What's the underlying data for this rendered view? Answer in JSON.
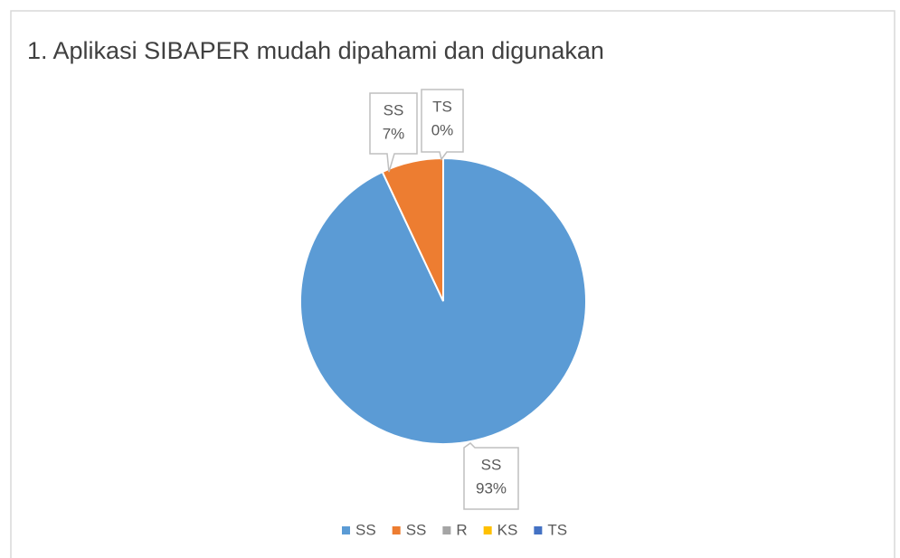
{
  "chart_data": {
    "type": "pie",
    "title": "1. Aplikasi SIBAPER mudah dipahami dan digunakan",
    "categories": [
      "SS",
      "SS",
      "R",
      "KS",
      "TS"
    ],
    "values": [
      93,
      7,
      0,
      0,
      0
    ],
    "value_labels": [
      "93%",
      "7%",
      null,
      null,
      "0%"
    ],
    "colors": [
      "#5b9bd5",
      "#ed7d31",
      "#a5a5a5",
      "#ffc000",
      "#4472c4"
    ],
    "legend": "bottom"
  }
}
